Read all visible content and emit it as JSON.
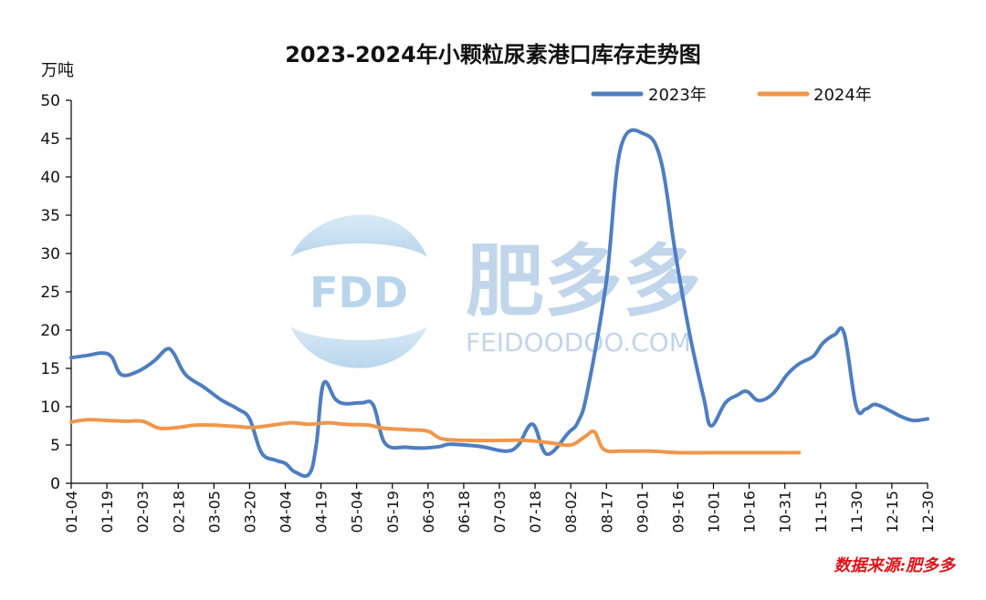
{
  "chart_data": {
    "type": "line",
    "title": "2023-2024年小颗粒尿素港口库存走势图",
    "ylabel": "万吨",
    "ylim": [
      0,
      50
    ],
    "yticks": [
      0,
      5,
      10,
      15,
      20,
      25,
      30,
      35,
      40,
      45,
      50
    ],
    "xticks": [
      "01-04",
      "01-19",
      "02-03",
      "02-18",
      "03-05",
      "03-20",
      "04-04",
      "04-19",
      "05-04",
      "05-19",
      "06-03",
      "06-18",
      "07-03",
      "07-18",
      "08-02",
      "08-17",
      "09-01",
      "09-16",
      "10-01",
      "10-16",
      "10-31",
      "11-15",
      "11-30",
      "12-15",
      "12-30"
    ],
    "x_range": [
      "01-04",
      "12-30"
    ],
    "grid": false,
    "legend_position": "top-right",
    "source": "数据来源:肥多多",
    "series": [
      {
        "name": "2023年",
        "color": "#4e7ec0",
        "points": [
          {
            "x": "01-04",
            "y": 16.4
          },
          {
            "x": "01-11",
            "y": 16.7
          },
          {
            "x": "01-17",
            "y": 17.0
          },
          {
            "x": "01-21",
            "y": 16.5
          },
          {
            "x": "01-25",
            "y": 14.2
          },
          {
            "x": "02-01",
            "y": 14.6
          },
          {
            "x": "02-08",
            "y": 16.0
          },
          {
            "x": "02-13",
            "y": 17.5
          },
          {
            "x": "02-16",
            "y": 17.0
          },
          {
            "x": "02-21",
            "y": 14.2
          },
          {
            "x": "03-01",
            "y": 12.5
          },
          {
            "x": "03-08",
            "y": 10.9
          },
          {
            "x": "03-15",
            "y": 9.7
          },
          {
            "x": "03-20",
            "y": 8.4
          },
          {
            "x": "03-25",
            "y": 4.0
          },
          {
            "x": "03-31",
            "y": 3.0
          },
          {
            "x": "04-04",
            "y": 2.6
          },
          {
            "x": "04-08",
            "y": 1.5
          },
          {
            "x": "04-14",
            "y": 1.2
          },
          {
            "x": "04-17",
            "y": 5.0
          },
          {
            "x": "04-20",
            "y": 13.0
          },
          {
            "x": "04-25",
            "y": 11.0
          },
          {
            "x": "04-29",
            "y": 10.4
          },
          {
            "x": "05-06",
            "y": 10.5
          },
          {
            "x": "05-11",
            "y": 10.2
          },
          {
            "x": "05-16",
            "y": 5.2
          },
          {
            "x": "05-25",
            "y": 4.7
          },
          {
            "x": "06-01",
            "y": 4.6
          },
          {
            "x": "06-08",
            "y": 4.8
          },
          {
            "x": "06-12",
            "y": 5.1
          },
          {
            "x": "06-22",
            "y": 4.9
          },
          {
            "x": "06-27",
            "y": 4.7
          },
          {
            "x": "07-06",
            "y": 4.2
          },
          {
            "x": "07-11",
            "y": 5.0
          },
          {
            "x": "07-17",
            "y": 7.7
          },
          {
            "x": "07-23",
            "y": 3.8
          },
          {
            "x": "08-01",
            "y": 6.6
          },
          {
            "x": "08-05",
            "y": 8.0
          },
          {
            "x": "08-09",
            "y": 12.0
          },
          {
            "x": "08-17",
            "y": 26.5
          },
          {
            "x": "08-23",
            "y": 43.8
          },
          {
            "x": "09-02",
            "y": 45.6
          },
          {
            "x": "09-09",
            "y": 42.0
          },
          {
            "x": "09-15",
            "y": 30.0
          },
          {
            "x": "09-21",
            "y": 19.5
          },
          {
            "x": "09-27",
            "y": 11.0
          },
          {
            "x": "09-30",
            "y": 7.5
          },
          {
            "x": "10-06",
            "y": 10.5
          },
          {
            "x": "10-11",
            "y": 11.5
          },
          {
            "x": "10-15",
            "y": 12.0
          },
          {
            "x": "10-20",
            "y": 10.8
          },
          {
            "x": "10-26",
            "y": 11.7
          },
          {
            "x": "11-01",
            "y": 14.2
          },
          {
            "x": "11-06",
            "y": 15.6
          },
          {
            "x": "11-12",
            "y": 16.6
          },
          {
            "x": "11-16",
            "y": 18.3
          },
          {
            "x": "11-21",
            "y": 19.4
          },
          {
            "x": "11-25",
            "y": 19.5
          },
          {
            "x": "11-30",
            "y": 10.0
          },
          {
            "x": "12-04",
            "y": 9.7
          },
          {
            "x": "12-08",
            "y": 10.3
          },
          {
            "x": "12-14",
            "y": 9.5
          },
          {
            "x": "12-19",
            "y": 8.7
          },
          {
            "x": "12-24",
            "y": 8.2
          },
          {
            "x": "12-30",
            "y": 8.4
          }
        ]
      },
      {
        "name": "2024年",
        "color": "#f0964b",
        "points": [
          {
            "x": "01-04",
            "y": 8.0
          },
          {
            "x": "01-11",
            "y": 8.3
          },
          {
            "x": "01-19",
            "y": 8.2
          },
          {
            "x": "01-27",
            "y": 8.1
          },
          {
            "x": "02-03",
            "y": 8.1
          },
          {
            "x": "02-10",
            "y": 7.2
          },
          {
            "x": "02-18",
            "y": 7.3
          },
          {
            "x": "02-25",
            "y": 7.6
          },
          {
            "x": "03-05",
            "y": 7.6
          },
          {
            "x": "03-15",
            "y": 7.4
          },
          {
            "x": "03-22",
            "y": 7.3
          },
          {
            "x": "04-01",
            "y": 7.7
          },
          {
            "x": "04-07",
            "y": 7.9
          },
          {
            "x": "04-14",
            "y": 7.7
          },
          {
            "x": "04-22",
            "y": 7.9
          },
          {
            "x": "04-29",
            "y": 7.7
          },
          {
            "x": "05-09",
            "y": 7.6
          },
          {
            "x": "05-15",
            "y": 7.2
          },
          {
            "x": "05-25",
            "y": 7.0
          },
          {
            "x": "06-03",
            "y": 6.8
          },
          {
            "x": "06-09",
            "y": 5.8
          },
          {
            "x": "06-22",
            "y": 5.6
          },
          {
            "x": "07-03",
            "y": 5.6
          },
          {
            "x": "07-14",
            "y": 5.6
          },
          {
            "x": "07-24",
            "y": 5.3
          },
          {
            "x": "08-02",
            "y": 5.0
          },
          {
            "x": "08-08",
            "y": 6.1
          },
          {
            "x": "08-12",
            "y": 6.7
          },
          {
            "x": "08-16",
            "y": 4.4
          },
          {
            "x": "08-24",
            "y": 4.2
          },
          {
            "x": "09-05",
            "y": 4.2
          },
          {
            "x": "09-16",
            "y": 4.0
          },
          {
            "x": "10-01",
            "y": 4.0
          },
          {
            "x": "10-16",
            "y": 4.0
          },
          {
            "x": "10-29",
            "y": 4.0
          },
          {
            "x": "11-06",
            "y": 4.0
          }
        ]
      }
    ]
  },
  "watermark": {
    "logo_text": "FDD",
    "brand_name": "肥多多",
    "url": "FEIDOODOO.COM"
  },
  "colors": {
    "axis": "#000000",
    "source_text": "#e0141b",
    "watermark_blue": "#9dc3e6"
  }
}
